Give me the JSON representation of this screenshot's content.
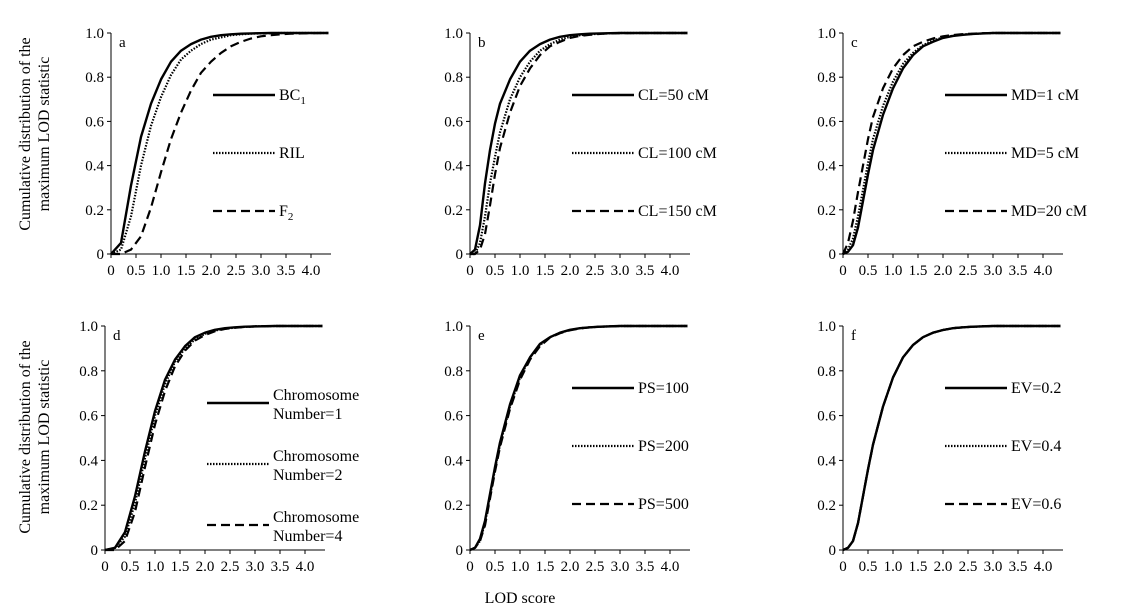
{
  "figure": {
    "ylabel_line1": "Cumulative distribution of the",
    "ylabel_line2": "maximum LOD statistic",
    "xlabel": "LOD score"
  },
  "chart_data": [
    {
      "type": "line",
      "panel_label": "a",
      "xlim": [
        0,
        4.4
      ],
      "ylim": [
        0,
        1.0
      ],
      "x_ticks": [
        "0",
        "0.5",
        "1.0",
        "1.5",
        "2.0",
        "2.5",
        "3.0",
        "3.5",
        "4.0"
      ],
      "y_ticks": [
        "0",
        "0.2",
        "0.4",
        "0.6",
        "0.8",
        "1.0"
      ],
      "x": [
        0,
        0.2,
        0.4,
        0.6,
        0.8,
        1.0,
        1.2,
        1.4,
        1.6,
        1.8,
        2.0,
        2.2,
        2.4,
        2.6,
        2.8,
        3.0,
        3.2,
        3.4,
        3.6,
        3.8,
        4.0,
        4.2,
        4.35
      ],
      "series": [
        {
          "name": "BC",
          "name_sub": "1",
          "style": "solid",
          "values": [
            0,
            0.05,
            0.31,
            0.53,
            0.68,
            0.79,
            0.87,
            0.92,
            0.95,
            0.97,
            0.983,
            0.99,
            0.994,
            0.997,
            0.998,
            0.999,
            1,
            1,
            1,
            1,
            1,
            1,
            1
          ]
        },
        {
          "name": "RIL",
          "name_sub": "",
          "style": "dotted",
          "values": [
            0,
            0.02,
            0.17,
            0.4,
            0.58,
            0.71,
            0.81,
            0.88,
            0.92,
            0.95,
            0.97,
            0.98,
            0.99,
            0.994,
            0.997,
            0.998,
            0.999,
            1,
            1,
            1,
            1,
            1,
            1
          ]
        },
        {
          "name": "F",
          "name_sub": "2",
          "style": "dashed",
          "values": [
            0,
            0,
            0.02,
            0.08,
            0.21,
            0.37,
            0.52,
            0.64,
            0.74,
            0.82,
            0.87,
            0.91,
            0.94,
            0.96,
            0.975,
            0.985,
            0.99,
            0.994,
            0.997,
            0.998,
            0.999,
            1,
            1
          ]
        }
      ]
    },
    {
      "type": "line",
      "panel_label": "b",
      "xlim": [
        0,
        4.4
      ],
      "ylim": [
        0,
        1.0
      ],
      "x_ticks": [
        "0",
        "0.5",
        "1.0",
        "1.5",
        "2.0",
        "2.5",
        "3.0",
        "3.5",
        "4.0"
      ],
      "y_ticks": [
        "0",
        "0.2",
        "0.4",
        "0.6",
        "0.8",
        "1.0"
      ],
      "x": [
        0,
        0.1,
        0.2,
        0.3,
        0.4,
        0.5,
        0.6,
        0.8,
        1.0,
        1.2,
        1.4,
        1.6,
        1.8,
        2.0,
        2.2,
        2.4,
        2.6,
        2.8,
        3.0,
        3.4,
        3.8,
        4.35
      ],
      "series": [
        {
          "name": "CL=50 cM",
          "name_sub": "",
          "style": "solid",
          "values": [
            0,
            0.02,
            0.13,
            0.32,
            0.47,
            0.59,
            0.68,
            0.79,
            0.87,
            0.92,
            0.95,
            0.97,
            0.983,
            0.99,
            0.994,
            0.997,
            0.998,
            0.999,
            1,
            1,
            1,
            1
          ]
        },
        {
          "name": "CL=100 cM",
          "name_sub": "",
          "style": "dotted",
          "values": [
            0,
            0,
            0.05,
            0.17,
            0.32,
            0.44,
            0.55,
            0.7,
            0.8,
            0.87,
            0.92,
            0.95,
            0.97,
            0.983,
            0.99,
            0.994,
            0.997,
            0.998,
            1,
            1,
            1,
            1
          ]
        },
        {
          "name": "CL=150 cM",
          "name_sub": "",
          "style": "dashed",
          "values": [
            0,
            0,
            0.02,
            0.09,
            0.22,
            0.36,
            0.48,
            0.64,
            0.76,
            0.84,
            0.9,
            0.94,
            0.96,
            0.978,
            0.987,
            0.992,
            0.996,
            0.998,
            0.999,
            1,
            1,
            1
          ]
        }
      ]
    },
    {
      "type": "line",
      "panel_label": "c",
      "xlim": [
        0,
        4.4
      ],
      "ylim": [
        0,
        1.0
      ],
      "x_ticks": [
        "0",
        "0.5",
        "1.0",
        "1.5",
        "2.0",
        "2.5",
        "3.0",
        "3.5",
        "4.0"
      ],
      "y_ticks": [
        "0",
        "0.2",
        "0.4",
        "0.6",
        "0.8",
        "1.0"
      ],
      "x": [
        0,
        0.1,
        0.2,
        0.3,
        0.4,
        0.5,
        0.6,
        0.8,
        1.0,
        1.2,
        1.4,
        1.6,
        1.8,
        2.0,
        2.2,
        2.4,
        2.6,
        2.8,
        3.0,
        3.4,
        3.8,
        4.35
      ],
      "series": [
        {
          "name": "MD=1 cM",
          "name_sub": "",
          "style": "solid",
          "values": [
            0,
            0.01,
            0.04,
            0.12,
            0.24,
            0.36,
            0.47,
            0.63,
            0.75,
            0.84,
            0.9,
            0.94,
            0.96,
            0.978,
            0.987,
            0.992,
            0.996,
            0.998,
            1,
            1,
            1,
            1
          ]
        },
        {
          "name": "MD=5 cM",
          "name_sub": "",
          "style": "dotted",
          "values": [
            0,
            0.02,
            0.07,
            0.17,
            0.29,
            0.41,
            0.52,
            0.67,
            0.78,
            0.86,
            0.91,
            0.945,
            0.966,
            0.98,
            0.988,
            0.993,
            0.996,
            0.998,
            1,
            1,
            1,
            1
          ]
        },
        {
          "name": "MD=20 cM",
          "name_sub": "",
          "style": "dashed",
          "values": [
            0,
            0.05,
            0.15,
            0.28,
            0.4,
            0.52,
            0.62,
            0.75,
            0.84,
            0.9,
            0.94,
            0.96,
            0.975,
            0.985,
            0.991,
            0.995,
            0.997,
            0.999,
            1,
            1,
            1,
            1
          ]
        }
      ]
    },
    {
      "type": "line",
      "panel_label": "d",
      "xlim": [
        0,
        4.4
      ],
      "ylim": [
        0,
        1.0
      ],
      "x_ticks": [
        "0",
        "0.5",
        "1.0",
        "1.5",
        "2.0",
        "2.5",
        "3.0",
        "3.5",
        "4.0"
      ],
      "y_ticks": [
        "0",
        "0.2",
        "0.4",
        "0.6",
        "0.8",
        "1.0"
      ],
      "x": [
        0,
        0.2,
        0.4,
        0.6,
        0.8,
        1.0,
        1.2,
        1.4,
        1.6,
        1.8,
        2.0,
        2.2,
        2.4,
        2.6,
        2.8,
        3.0,
        3.4,
        3.8,
        4.35
      ],
      "series": [
        {
          "name": "Chromosome Number=1",
          "name_sub": "",
          "style": "solid",
          "values": [
            0,
            0.01,
            0.08,
            0.24,
            0.44,
            0.62,
            0.76,
            0.85,
            0.91,
            0.95,
            0.97,
            0.983,
            0.99,
            0.994,
            0.997,
            0.998,
            1,
            1,
            1
          ]
        },
        {
          "name": "Chromosome Number=2",
          "name_sub": "",
          "style": "dotted",
          "values": [
            0,
            0.01,
            0.06,
            0.21,
            0.41,
            0.6,
            0.74,
            0.84,
            0.9,
            0.94,
            0.965,
            0.98,
            0.988,
            0.993,
            0.996,
            0.998,
            1,
            1,
            1
          ]
        },
        {
          "name": "Chromosome Number=4",
          "name_sub": "",
          "style": "dashed",
          "values": [
            0,
            0,
            0.04,
            0.17,
            0.37,
            0.56,
            0.71,
            0.82,
            0.89,
            0.935,
            0.96,
            0.977,
            0.987,
            0.992,
            0.996,
            0.998,
            1,
            1,
            1
          ]
        }
      ]
    },
    {
      "type": "line",
      "panel_label": "e",
      "xlim": [
        0,
        4.4
      ],
      "ylim": [
        0,
        1.0
      ],
      "x_ticks": [
        "0",
        "0.5",
        "1.0",
        "1.5",
        "2.0",
        "2.5",
        "3.0",
        "3.5",
        "4.0"
      ],
      "y_ticks": [
        "0",
        "0.2",
        "0.4",
        "0.6",
        "0.8",
        "1.0"
      ],
      "x": [
        0,
        0.1,
        0.2,
        0.3,
        0.4,
        0.5,
        0.6,
        0.8,
        1.0,
        1.2,
        1.4,
        1.6,
        1.8,
        2.0,
        2.2,
        2.4,
        2.6,
        3.0,
        3.4,
        3.8,
        4.35
      ],
      "series": [
        {
          "name": "PS=100",
          "name_sub": "",
          "style": "solid",
          "values": [
            0,
            0.01,
            0.05,
            0.13,
            0.25,
            0.37,
            0.48,
            0.65,
            0.78,
            0.86,
            0.92,
            0.95,
            0.97,
            0.983,
            0.99,
            0.994,
            0.997,
            1,
            1,
            1,
            1
          ]
        },
        {
          "name": "PS=200",
          "name_sub": "",
          "style": "dotted",
          "values": [
            0,
            0.01,
            0.04,
            0.12,
            0.24,
            0.36,
            0.47,
            0.64,
            0.77,
            0.86,
            0.915,
            0.95,
            0.97,
            0.982,
            0.99,
            0.994,
            0.997,
            1,
            1,
            1,
            1
          ]
        },
        {
          "name": "PS=500",
          "name_sub": "",
          "style": "dashed",
          "values": [
            0,
            0.01,
            0.04,
            0.11,
            0.23,
            0.35,
            0.46,
            0.63,
            0.76,
            0.85,
            0.91,
            0.948,
            0.968,
            0.981,
            0.989,
            0.994,
            0.997,
            1,
            1,
            1,
            1
          ]
        }
      ]
    },
    {
      "type": "line",
      "panel_label": "f",
      "xlim": [
        0,
        4.4
      ],
      "ylim": [
        0,
        1.0
      ],
      "x_ticks": [
        "0",
        "0.5",
        "1.0",
        "1.5",
        "2.0",
        "2.5",
        "3.0",
        "3.5",
        "4.0"
      ],
      "y_ticks": [
        "0",
        "0.2",
        "0.4",
        "0.6",
        "0.8",
        "1.0"
      ],
      "x": [
        0,
        0.1,
        0.2,
        0.3,
        0.4,
        0.5,
        0.6,
        0.8,
        1.0,
        1.2,
        1.4,
        1.6,
        1.8,
        2.0,
        2.2,
        2.4,
        2.6,
        3.0,
        3.4,
        3.8,
        4.35
      ],
      "series": [
        {
          "name": "EV=0.2",
          "name_sub": "",
          "style": "solid",
          "values": [
            0,
            0.01,
            0.04,
            0.12,
            0.24,
            0.36,
            0.47,
            0.64,
            0.77,
            0.86,
            0.915,
            0.95,
            0.97,
            0.982,
            0.99,
            0.994,
            0.997,
            1,
            1,
            1,
            1
          ]
        },
        {
          "name": "EV=0.4",
          "name_sub": "",
          "style": "dotted",
          "values": [
            0,
            0.01,
            0.04,
            0.12,
            0.24,
            0.36,
            0.47,
            0.64,
            0.77,
            0.86,
            0.915,
            0.95,
            0.97,
            0.982,
            0.99,
            0.994,
            0.997,
            1,
            1,
            1,
            1
          ]
        },
        {
          "name": "EV=0.6",
          "name_sub": "",
          "style": "dashed",
          "values": [
            0,
            0.01,
            0.04,
            0.12,
            0.24,
            0.36,
            0.47,
            0.64,
            0.77,
            0.86,
            0.915,
            0.95,
            0.97,
            0.982,
            0.99,
            0.994,
            0.997,
            1,
            1,
            1,
            1
          ]
        }
      ]
    }
  ]
}
